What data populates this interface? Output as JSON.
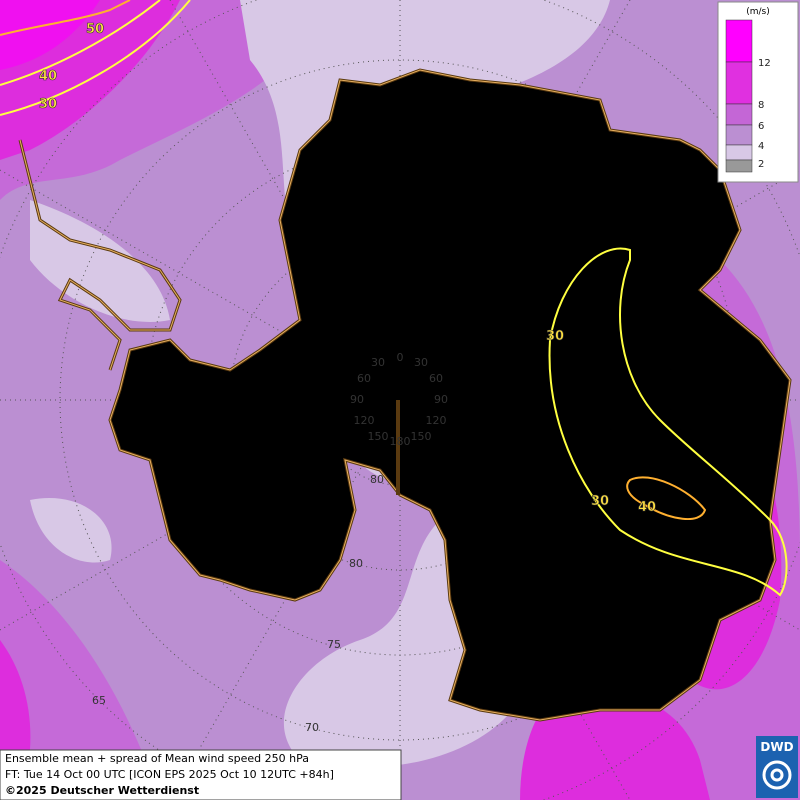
{
  "legend": {
    "unit": "(m/s)",
    "levels": [
      12,
      8,
      6,
      4,
      2
    ]
  },
  "contour_labels": [
    50,
    40,
    30,
    30,
    30,
    40
  ],
  "grid_labels": {
    "longitude": [
      30,
      0,
      30,
      60,
      60,
      90,
      90,
      120,
      120,
      150,
      150,
      180
    ],
    "latitude": [
      80,
      80,
      75,
      70,
      65
    ]
  },
  "caption": {
    "line1": "Ensemble mean + spread of Mean wind speed 250 hPa",
    "line2": "FT: Tue 14 Oct 00 UTC [ICON EPS 2025 Oct 10 12UTC +84h]",
    "line3": "©2025 Deutscher Wetterdienst"
  },
  "logo": "DWD"
}
